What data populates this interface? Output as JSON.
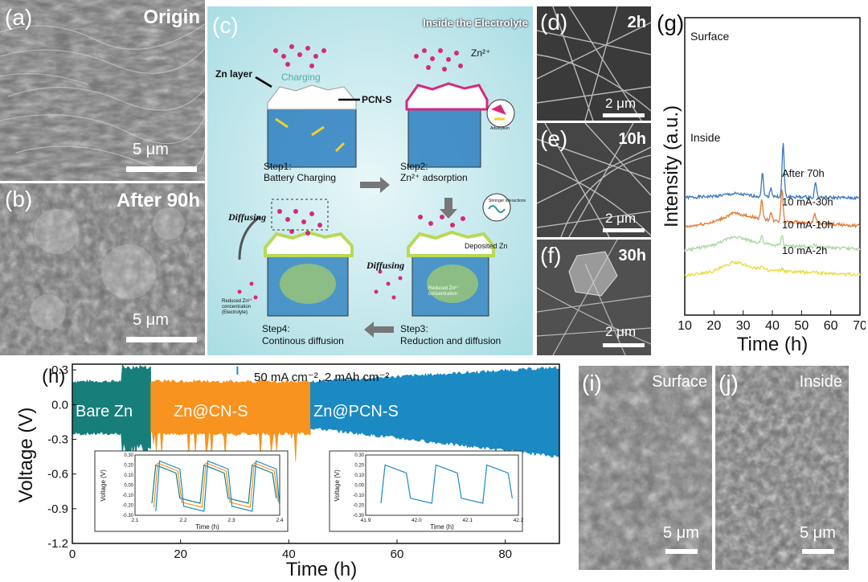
{
  "panels": {
    "a": {
      "label": "(a)",
      "condition": "Origin",
      "scale": "5 μm"
    },
    "b": {
      "label": "(b)",
      "condition": "After 90h",
      "scale": "5 μm"
    },
    "c": {
      "label": "(c)",
      "title": "Inside the Electrolyte",
      "charging": "Charging",
      "zn_ion": "Zn²⁺",
      "zn_layer": "Zn layer",
      "pcn_s": "PCN-S",
      "adsorption": "Adsorption",
      "strong_interactions": "Stronger interactions",
      "deposited_zn": "Deposited Zn",
      "diffusing_left": "Diffusing",
      "diffusing_right": "Diffusing",
      "reduced_conc_electrolyte": "Reduced Zn²⁺ concentration (Electrolyte)",
      "reduced_conc": "Reduced Zn²⁺ concentration",
      "step1_title": "Step1:",
      "step1_text": "Battery Charging",
      "step2_title": "Step2:",
      "step2_text": "Zn²⁺ adsorption",
      "step3_title": "Step3:",
      "step3_text": "Reduction and diffusion",
      "step4_title": "Step4:",
      "step4_text": "Continous diffusion"
    },
    "d": {
      "label": "(d)",
      "condition": "2h",
      "scale": "2 μm"
    },
    "e": {
      "label": "(e)",
      "condition": "10h",
      "scale": "2 μm"
    },
    "f": {
      "label": "(f)",
      "condition": "30h",
      "scale": "2 μm"
    },
    "i": {
      "label": "(i)",
      "condition": "Surface",
      "scale": "5 μm"
    },
    "j": {
      "label": "(j)",
      "condition": "Inside",
      "scale": "5 μm"
    }
  },
  "chart_data": [
    {
      "type": "line",
      "panel_label": "(g)",
      "xlabel": "Time (h)",
      "ylabel": "Intensity (a.u.)",
      "xlim": [
        10,
        70
      ],
      "xticks": [
        "10",
        "20",
        "30",
        "40",
        "50",
        "60",
        "70"
      ],
      "group_labels": [
        "Surface",
        "Inside"
      ],
      "series": [
        {
          "name": "After 70h",
          "color": "#3a78b8",
          "offset": 3.0,
          "baseline": [
            [
              10,
              0.1
            ],
            [
              20,
              0.15
            ],
            [
              27,
              0.25
            ],
            [
              35,
              0.15
            ],
            [
              70,
              0.08
            ]
          ],
          "peaks": [
            [
              36.6,
              0.9
            ],
            [
              39.5,
              0.35
            ],
            [
              43.7,
              2.1
            ],
            [
              54.8,
              0.6
            ]
          ]
        },
        {
          "name": "10 mA-30h",
          "color": "#e07a34",
          "offset": 1.9,
          "baseline": [
            [
              10,
              0.05
            ],
            [
              20,
              0.25
            ],
            [
              27,
              0.6
            ],
            [
              33,
              0.45
            ],
            [
              40,
              0.3
            ],
            [
              70,
              0.1
            ]
          ],
          "peaks": [
            [
              36.4,
              0.75
            ],
            [
              39.5,
              0.3
            ],
            [
              43.3,
              1.3
            ],
            [
              54.5,
              0.4
            ]
          ]
        },
        {
          "name": "10 mA-10h",
          "color": "#a8d8a0",
          "offset": 1.0,
          "baseline": [
            [
              10,
              0.05
            ],
            [
              20,
              0.25
            ],
            [
              27,
              0.6
            ],
            [
              33,
              0.4
            ],
            [
              40,
              0.25
            ],
            [
              70,
              0.1
            ]
          ],
          "peaks": [
            [
              36.4,
              0.3
            ],
            [
              43.3,
              0.4
            ],
            [
              54.5,
              0.1
            ]
          ]
        },
        {
          "name": "10 mA-2h",
          "color": "#e8dc3c",
          "offset": 0.0,
          "baseline": [
            [
              10,
              0.05
            ],
            [
              20,
              0.25
            ],
            [
              27,
              0.6
            ],
            [
              33,
              0.4
            ],
            [
              40,
              0.25
            ],
            [
              70,
              0.1
            ]
          ],
          "peaks": [
            [
              36.4,
              0.15
            ],
            [
              43.3,
              0.1
            ],
            [
              54.5,
              0.05
            ]
          ]
        }
      ]
    },
    {
      "type": "line",
      "panel_label": "(h)",
      "xlabel": "Time (h)",
      "ylabel": "Voltage (V)",
      "xlim": [
        0,
        90
      ],
      "ylim": [
        -1.2,
        0.35
      ],
      "xticks": [
        "0",
        "20",
        "40",
        "60",
        "80"
      ],
      "yticks": [
        "0.3",
        "0.0",
        "-0.3",
        "-0.6",
        "-0.9",
        "-1.2"
      ],
      "condition": "50 mA cm⁻², 2 mAh cm⁻²",
      "series": [
        {
          "name": "Bare Zn",
          "color": "#177e7a",
          "x_range": [
            0,
            14.5
          ]
        },
        {
          "name": "Zn@CN-S",
          "color": "#f7931e",
          "x_range": [
            14.5,
            44
          ]
        },
        {
          "name": "Zn@PCN-S",
          "color": "#1b8ac3",
          "x_range": [
            44,
            90
          ]
        }
      ],
      "insets": [
        {
          "xlabel": "Time (h)",
          "ylabel": "Voltage (V)",
          "xlim": [
            2.1,
            2.4
          ],
          "ylim": [
            -0.3,
            0.3
          ],
          "xticks": [
            "2.1",
            "2.2",
            "2.3",
            "2.4"
          ],
          "yticks": [
            "0.30",
            "0.25",
            "0.20",
            "0.15",
            "0.10",
            "0.05",
            "0.00",
            "-0.05",
            "-0.10",
            "-0.15",
            "-0.20",
            "-0.25",
            "-0.30"
          ]
        },
        {
          "xlabel": "Time (h)",
          "ylabel": "Voltage (V)",
          "xlim": [
            41.9,
            42.2
          ],
          "ylim": [
            -0.3,
            0.3
          ],
          "xticks": [
            "41.9",
            "42.0",
            "42.1",
            "42.2"
          ],
          "yticks": [
            "0.30",
            "0.25",
            "0.20",
            "0.15",
            "0.10",
            "0.05",
            "0.00",
            "-0.05",
            "-0.10",
            "-0.15",
            "-0.20",
            "-0.25",
            "-0.30"
          ]
        }
      ]
    }
  ],
  "colors": {
    "sem_gray": "#6f6f6f",
    "cyan_bg": "#bfe7ec",
    "pink_ion": "#d6297c",
    "blue_struct": "#2d7fbf",
    "green_layer": "#b6d957"
  }
}
